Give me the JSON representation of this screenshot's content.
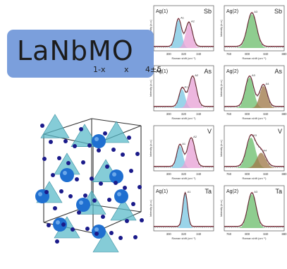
{
  "formula": {
    "main": "LaNbMO",
    "sub_1mx": "1-x",
    "sub_x": "x",
    "sub_4d": "4±δ"
  },
  "axis_labels": {
    "xlabel": "Raman shift (cm⁻¹)",
    "ylabel": "Intensity (a.u.)"
  },
  "colors": {
    "ag1_fill_left": "#7ec8e3",
    "ag1_fill_right": "#e8a3d6",
    "ag2_fill_left": "#6fbf6f",
    "ag2_fill_right": "#a07a4a",
    "fit_line": "#8b2a3a",
    "data_line": "#2a2a2a",
    "box_bg": "#7b9fdc",
    "atom_blue": "#1f6fd0",
    "atom_navy": "#1a1a8a",
    "tetra_cyan": "#56b8c8"
  },
  "chart_data": [
    {
      "type": "area",
      "panel": "Ag1-Sb",
      "mode_label": "Ag(1)",
      "element": "Sb",
      "xlim": [
        280,
        360
      ],
      "xticks": [
        300,
        320,
        340
      ],
      "peaks": [
        {
          "center": 313,
          "width": 9,
          "height": 0.82,
          "label": "A1"
        },
        {
          "center": 327,
          "width": 10,
          "height": 0.72,
          "label": "A2"
        }
      ]
    },
    {
      "type": "area",
      "panel": "Ag2-Sb",
      "mode_label": "Ag(2)",
      "element": "Sb",
      "xlim": [
        750,
        880
      ],
      "xticks": [
        760,
        800,
        840,
        880
      ],
      "peaks": [
        {
          "center": 810,
          "width": 22,
          "height": 1.0,
          "label": "A3"
        }
      ]
    },
    {
      "type": "area",
      "panel": "Ag1-As",
      "mode_label": "Ag(1)",
      "element": "As",
      "xlim": [
        280,
        360
      ],
      "xticks": [
        300,
        320,
        340
      ],
      "peaks": [
        {
          "center": 318,
          "width": 9,
          "height": 0.55,
          "label": "A1"
        },
        {
          "center": 332,
          "width": 11,
          "height": 0.9,
          "label": "A2"
        }
      ]
    },
    {
      "type": "area",
      "panel": "Ag2-As",
      "mode_label": "Ag(2)",
      "element": "As",
      "xlim": [
        750,
        880
      ],
      "xticks": [
        760,
        800,
        840,
        880
      ],
      "peaks": [
        {
          "center": 805,
          "width": 20,
          "height": 0.9,
          "label": "A3"
        },
        {
          "center": 835,
          "width": 18,
          "height": 0.65,
          "label": "A4"
        }
      ]
    },
    {
      "type": "area",
      "panel": "Ag1-V",
      "mode_label": "",
      "element": "V",
      "xlim": [
        280,
        360
      ],
      "xticks": [
        300,
        320,
        340
      ],
      "peaks": [
        {
          "center": 315,
          "width": 9,
          "height": 0.65,
          "label": "A1"
        },
        {
          "center": 330,
          "width": 11,
          "height": 0.85,
          "label": "A2"
        }
      ]
    },
    {
      "type": "area",
      "panel": "Ag2-V",
      "mode_label": "",
      "element": "V",
      "xlim": [
        750,
        880
      ],
      "xticks": [
        760,
        800,
        840,
        880
      ],
      "peaks": [
        {
          "center": 808,
          "width": 22,
          "height": 0.9,
          "label": "A3"
        },
        {
          "center": 830,
          "width": 22,
          "height": 0.45,
          "label": "A4"
        }
      ]
    },
    {
      "type": "area",
      "panel": "Ag1-Ta",
      "mode_label": "Ag(1)",
      "element": "Ta",
      "xlim": [
        280,
        360
      ],
      "xticks": [
        300,
        320,
        340
      ],
      "peaks": [
        {
          "center": 322,
          "width": 7,
          "height": 1.0,
          "label": "A1"
        }
      ]
    },
    {
      "type": "area",
      "panel": "Ag2-Ta",
      "mode_label": "Ag(2)",
      "element": "Ta",
      "xlim": [
        750,
        880
      ],
      "xticks": [
        760,
        800,
        840,
        880
      ],
      "peaks": [
        {
          "center": 810,
          "width": 20,
          "height": 1.0,
          "label": "A3"
        }
      ]
    }
  ]
}
